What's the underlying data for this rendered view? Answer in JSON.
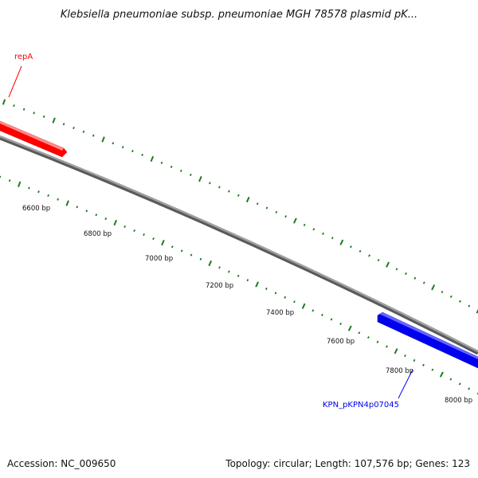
{
  "title": "Klebsiella pneumoniae subsp. pneumoniae MGH 78578 plasmid pK...",
  "accession": "Accession: NC_009650",
  "summary": "Topology: circular; Length: 107,576 bp; Genes: 123",
  "colors": {
    "backbone": "#8a8a8a",
    "tick": "#1e7a1e",
    "gene_forward": "#ff0000",
    "gene_reverse": "#0000ee",
    "label_text": "#111111"
  },
  "scale_labels": [
    "6600 bp",
    "6800 bp",
    "7000 bp",
    "7200 bp",
    "7400 bp",
    "7600 bp",
    "7800 bp",
    "8000 bp"
  ],
  "genes": [
    {
      "name": "repA",
      "strand": "forward",
      "color": "#ff0000"
    },
    {
      "name": "KPN_pKPN4p07045",
      "strand": "reverse",
      "color": "#0000ee"
    }
  ]
}
